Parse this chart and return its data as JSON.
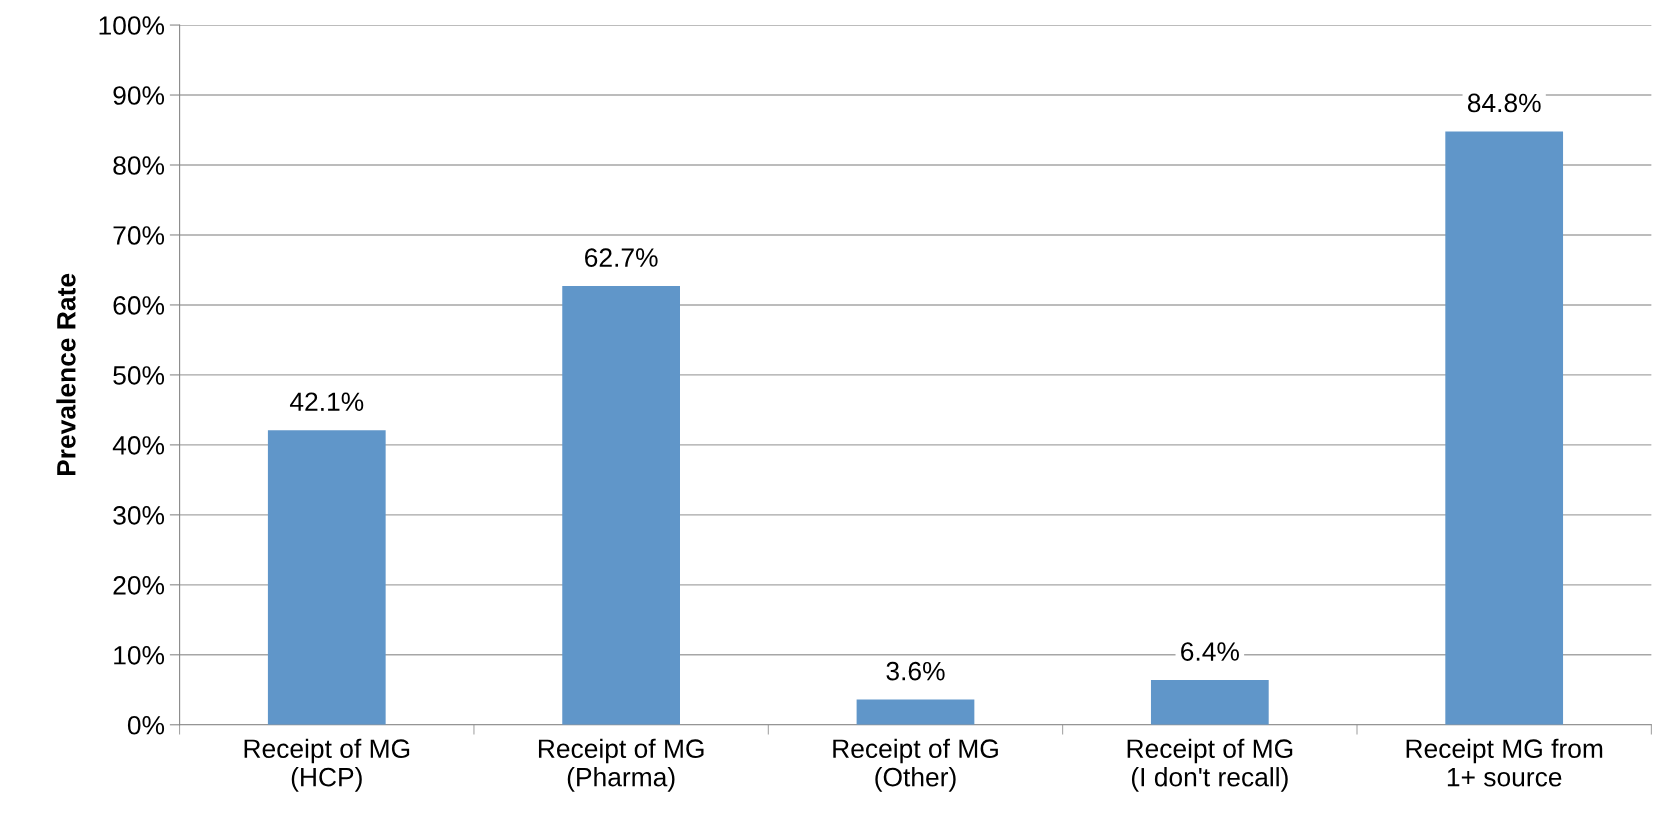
{
  "chart_data": {
    "type": "bar",
    "ylabel": "Prevalence Rate",
    "categories": [
      "Receipt of MG\n(HCP)",
      "Receipt of MG\n(Pharma)",
      "Receipt of MG\n(Other)",
      "Receipt of MG\n(I don't recall)",
      "Receipt MG from\n1+ source"
    ],
    "values": [
      42.1,
      62.7,
      3.6,
      6.4,
      84.8
    ],
    "value_labels": [
      "42.1%",
      "62.7%",
      "3.6%",
      "6.4%",
      "84.8%"
    ],
    "color": "#6096c9",
    "ylim": [
      0,
      100
    ],
    "yticks": [
      {
        "value": 0,
        "label": "0%"
      },
      {
        "value": 10,
        "label": "10%"
      },
      {
        "value": 20,
        "label": "20%"
      },
      {
        "value": 30,
        "label": "30%"
      },
      {
        "value": 40,
        "label": "40%"
      },
      {
        "value": 50,
        "label": "50%"
      },
      {
        "value": 60,
        "label": "60%"
      },
      {
        "value": 70,
        "label": "70%"
      },
      {
        "value": 80,
        "label": "80%"
      },
      {
        "value": 90,
        "label": "90%"
      },
      {
        "value": 100,
        "label": "100%"
      }
    ],
    "grid": "y"
  }
}
